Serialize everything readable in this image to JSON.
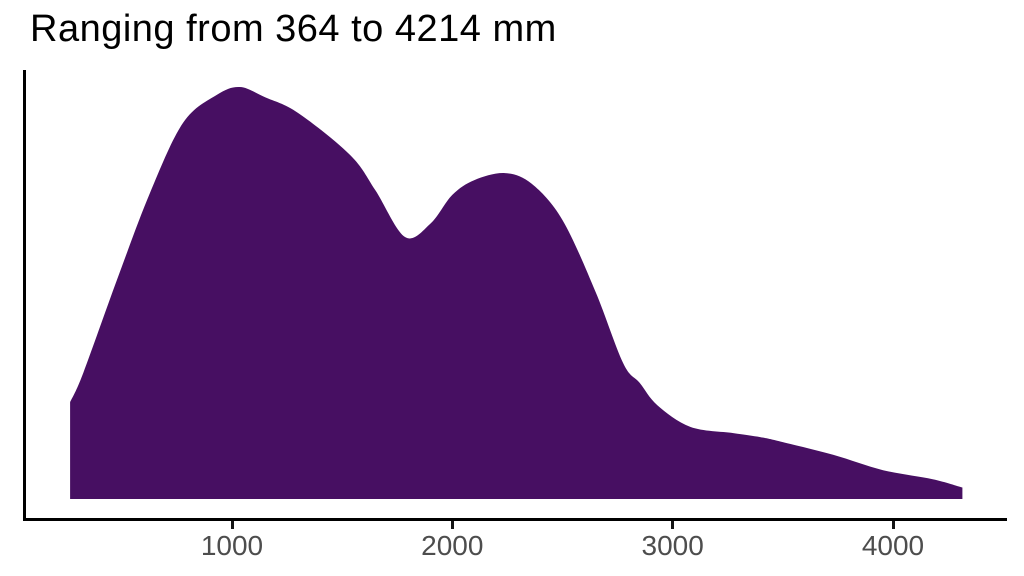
{
  "title": "Ranging from 364 to 4214 mm",
  "chart_data": {
    "type": "area",
    "subtype": "density",
    "title": "Ranging from 364 to 4214 mm",
    "xlabel": "",
    "ylabel": "",
    "x_unit": "mm",
    "data_min_mm": 364,
    "data_max_mm": 4214,
    "x_ticks": [
      1000,
      2000,
      3000,
      4000
    ],
    "xlim": [
      265,
      4315
    ],
    "ylim": [
      0,
      1.1
    ],
    "grid": false,
    "legend": "none",
    "fill_color": "#470F62",
    "axis_color": "#000000",
    "tick_color": "#141414",
    "tick_label_color": "#4d4d4d",
    "curve": {
      "comment": "relative density (1.0 = tallest peak); peaks at ~1036mm and ~2239mm, valley at ~1785mm, tail shoulder near ~3300mm",
      "x": [
        265,
        325,
        478,
        628,
        778,
        932,
        1036,
        1150,
        1300,
        1536,
        1650,
        1785,
        1900,
        2000,
        2100,
        2239,
        2360,
        2500,
        2650,
        2775,
        2850,
        2930,
        3080,
        3275,
        3400,
        3500,
        3730,
        3955,
        4180,
        4315
      ],
      "density": [
        0.235,
        0.306,
        0.532,
        0.743,
        0.913,
        0.981,
        1.0,
        0.975,
        0.937,
        0.835,
        0.75,
        0.636,
        0.668,
        0.738,
        0.774,
        0.791,
        0.765,
        0.677,
        0.503,
        0.33,
        0.282,
        0.228,
        0.175,
        0.16,
        0.15,
        0.138,
        0.107,
        0.07,
        0.048,
        0.028
      ]
    }
  }
}
